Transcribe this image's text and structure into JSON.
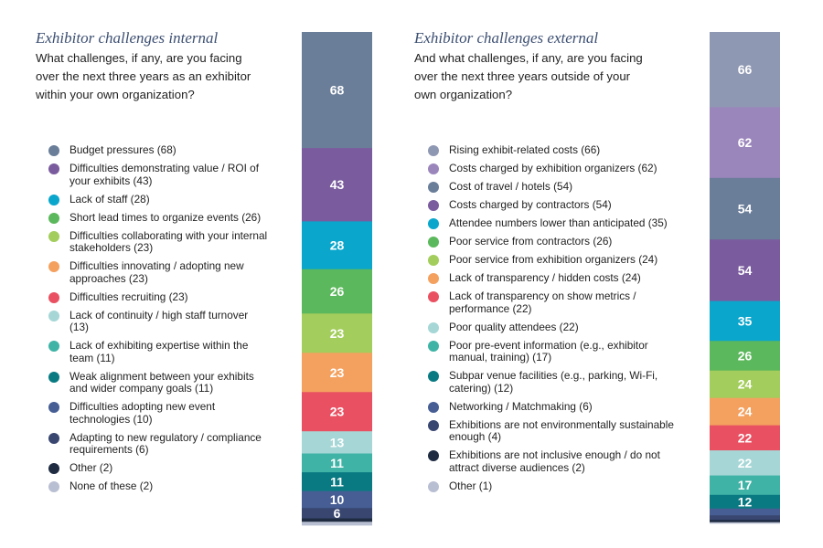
{
  "chart_data": [
    {
      "type": "stacked-bar",
      "title": "Exhibitor challenges internal",
      "question": "What challenges, if any, are you facing over the next three years as an exhibitor within your own organization?",
      "categories": [
        "Budget pressures (68)",
        "Difficulties demonstrating value / ROI of your exhibits (43)",
        "Lack of staff (28)",
        "Short lead times to organize events (26)",
        "Difficulties collaborating with your internal stakeholders (23)",
        "Difficulties innovating / adopting new approaches (23)",
        "Difficulties recruiting (23)",
        "Lack of continuity / high staff turnover (13)",
        "Lack of exhibiting expertise within the team (11)",
        "Weak alignment between your exhibits and wider company goals (11)",
        "Difficulties adopting new event technologies (10)",
        "Adapting to new regulatory / compliance requirements (6)",
        "Other (2)",
        "None of these (2)"
      ],
      "values": [
        68,
        43,
        28,
        26,
        23,
        23,
        23,
        13,
        11,
        11,
        10,
        6,
        2,
        2
      ],
      "labels": [
        "68",
        "43",
        "28",
        "26",
        "23",
        "23",
        "23",
        "13",
        "11",
        "11",
        "10",
        "6",
        "",
        ""
      ],
      "colors": [
        "#6a7d99",
        "#7a5c9e",
        "#0aa6cc",
        "#5cb85c",
        "#a3cd5c",
        "#f4a160",
        "#e95162",
        "#a6d6d6",
        "#3fb3a6",
        "#0a7a82",
        "#465e94",
        "#394670",
        "#1e2b41",
        "#b9bfd2"
      ],
      "legend": "left"
    },
    {
      "type": "stacked-bar",
      "title": "Exhibitor challenges external",
      "question": "And what challenges, if any, are you facing over the next three years outside of your own organization?",
      "categories": [
        "Rising exhibit-related costs (66)",
        "Costs charged by exhibition organizers (62)",
        "Cost of travel / hotels (54)",
        "Costs charged by contractors (54)",
        "Attendee numbers lower than anticipated (35)",
        "Poor service from contractors (26)",
        "Poor service from exhibition organizers (24)",
        "Lack of transparency / hidden costs (24)",
        "Lack of transparency on show metrics / performance (22)",
        "Poor quality attendees (22)",
        "Poor pre-event information (e.g., exhibitor manual, training) (17)",
        "Subpar venue facilities (e.g., parking, Wi-Fi, catering) (12)",
        "Networking / Matchmaking (6)",
        "Exhibitions are not environmentally sustainable enough (4)",
        "Exhibitions are not inclusive enough / do not attract diverse audiences (2)",
        "Other (1)"
      ],
      "values": [
        66,
        62,
        54,
        54,
        35,
        26,
        24,
        24,
        22,
        22,
        17,
        12,
        6,
        4,
        2,
        1
      ],
      "labels": [
        "66",
        "62",
        "54",
        "54",
        "35",
        "26",
        "24",
        "24",
        "22",
        "22",
        "17",
        "12",
        "",
        "",
        "",
        ""
      ],
      "colors": [
        "#8f98b3",
        "#9b86bc",
        "#6a7d99",
        "#7a5c9e",
        "#0aa6cc",
        "#5cb85c",
        "#a3cd5c",
        "#f4a160",
        "#e95162",
        "#a6d6d6",
        "#3fb3a6",
        "#0a7a82",
        "#465e94",
        "#394670",
        "#1e2b41",
        "#b9bfd2"
      ],
      "legend": "left"
    }
  ]
}
